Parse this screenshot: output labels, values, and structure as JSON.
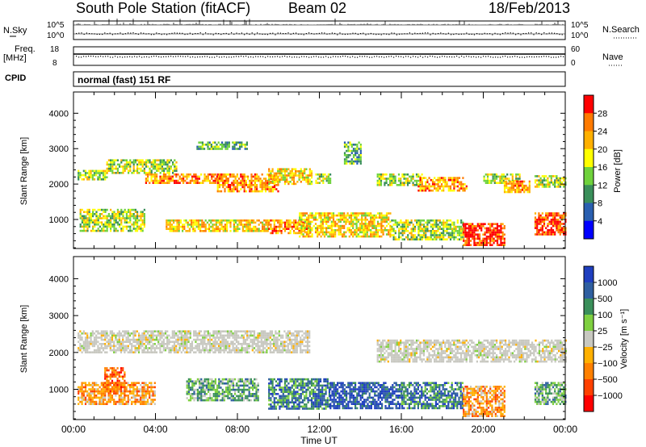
{
  "header": {
    "title": "South Pole Station (fitACF)",
    "beam": "Beam 02",
    "date": "18/Feb/2013"
  },
  "noise_panel": {
    "left_label": "N.Sky",
    "right_label": "N.Search",
    "left_ticks": [
      "10^5",
      "10^0"
    ],
    "right_ticks": [
      "10^5",
      "10^0"
    ]
  },
  "freq_panel": {
    "left_label_1": "Freq.",
    "left_label_2": "[MHz]",
    "right_label": "Nave",
    "left_ticks": [
      "18",
      "8"
    ],
    "right_ticks": [
      "60",
      "0"
    ]
  },
  "cpid": {
    "label": "CPID",
    "text": "normal (fast) 151 RF"
  },
  "axes": {
    "y_label": "Slant Range [km]",
    "x_label": "Time UT",
    "y_ticks": [
      "4000",
      "3000",
      "2000",
      "1000"
    ],
    "x_ticks": [
      "00:00",
      "04:00",
      "08:00",
      "12:00",
      "16:00",
      "20:00",
      "00:00"
    ]
  },
  "colors": {
    "axis": "#000000",
    "background": "#ffffff"
  },
  "chart_data": [
    {
      "type": "heatmap",
      "panel": "power",
      "xlabel": "Time UT",
      "ylabel": "Slant Range [km]",
      "xlim_hours": [
        0,
        24
      ],
      "ylim": [
        180,
        4600
      ],
      "colorbar": {
        "label": "Power [dB]",
        "ticks": [
          "28",
          "24",
          "20",
          "16",
          "12",
          "8",
          "4"
        ],
        "colors": [
          "#ff0000",
          "#ff7a00",
          "#ffb000",
          "#ffff00",
          "#6fd23c",
          "#3a8f5a",
          "#2a5fb0",
          "#0000ff"
        ]
      },
      "echo_bands": [
        {
          "t0": 0.2,
          "t1": 1.6,
          "r0": 2150,
          "r1": 2400,
          "level": 3
        },
        {
          "t0": 1.6,
          "t1": 5.0,
          "r0": 2300,
          "r1": 2700,
          "level": 3
        },
        {
          "t0": 3.5,
          "t1": 7.5,
          "r0": 2050,
          "r1": 2300,
          "level": 5
        },
        {
          "t0": 7.0,
          "t1": 10.0,
          "r0": 1800,
          "r1": 2300,
          "level": 5
        },
        {
          "t0": 9.5,
          "t1": 11.6,
          "r0": 2000,
          "r1": 2450,
          "level": 4
        },
        {
          "t0": 11.8,
          "t1": 12.5,
          "r0": 2050,
          "r1": 2300,
          "level": 3
        },
        {
          "t0": 14.8,
          "t1": 17.0,
          "r0": 2000,
          "r1": 2300,
          "level": 3
        },
        {
          "t0": 16.8,
          "t1": 19.2,
          "r0": 1800,
          "r1": 2200,
          "level": 5
        },
        {
          "t0": 20.0,
          "t1": 21.8,
          "r0": 2050,
          "r1": 2300,
          "level": 3
        },
        {
          "t0": 21.0,
          "t1": 22.3,
          "r0": 1800,
          "r1": 2100,
          "level": 5
        },
        {
          "t0": 22.5,
          "t1": 24.0,
          "r0": 1900,
          "r1": 2250,
          "level": 3
        },
        {
          "t0": 0.3,
          "t1": 3.5,
          "r0": 700,
          "r1": 1300,
          "level": 3
        },
        {
          "t0": 4.5,
          "t1": 9.5,
          "r0": 700,
          "r1": 1000,
          "level": 4
        },
        {
          "t0": 9.5,
          "t1": 11.5,
          "r0": 600,
          "r1": 1000,
          "level": 5
        },
        {
          "t0": 11.0,
          "t1": 15.5,
          "r0": 500,
          "r1": 1200,
          "level": 4
        },
        {
          "t0": 15.5,
          "t1": 19.0,
          "r0": 450,
          "r1": 1000,
          "level": 3
        },
        {
          "t0": 19.0,
          "t1": 21.0,
          "r0": 300,
          "r1": 900,
          "level": 6
        },
        {
          "t0": 22.5,
          "t1": 24.0,
          "r0": 600,
          "r1": 1200,
          "level": 6
        },
        {
          "t0": 6.0,
          "t1": 8.5,
          "r0": 3000,
          "r1": 3200,
          "level": 2
        },
        {
          "t0": 13.2,
          "t1": 14.0,
          "r0": 2600,
          "r1": 3200,
          "level": 2
        }
      ]
    },
    {
      "type": "heatmap",
      "panel": "velocity",
      "xlabel": "Time UT",
      "ylabel": "Slant Range [km]",
      "xlim_hours": [
        0,
        24
      ],
      "ylim": [
        180,
        4600
      ],
      "colorbar": {
        "label": "Velocity [m s⁻¹]",
        "ticks": [
          "1000",
          "500",
          "100",
          "25",
          "−25",
          "−100",
          "−500",
          "−1000"
        ],
        "colors": [
          "#1f3fbf",
          "#2f5fa0",
          "#3a8f5a",
          "#7fd040",
          "#c8c8c0",
          "#ffb000",
          "#ff8000",
          "#ff4000",
          "#ff0000"
        ]
      },
      "echo_bands": [
        {
          "t0": 0.2,
          "t1": 11.5,
          "r0": 2000,
          "r1": 2600,
          "level": 4
        },
        {
          "t0": 14.8,
          "t1": 24.0,
          "r0": 1750,
          "r1": 2350,
          "level": 4
        },
        {
          "t0": 0.2,
          "t1": 4.0,
          "r0": 600,
          "r1": 1200,
          "level": 6
        },
        {
          "t0": 1.5,
          "t1": 2.5,
          "r0": 900,
          "r1": 1600,
          "level": 7
        },
        {
          "t0": 5.5,
          "t1": 9.0,
          "r0": 700,
          "r1": 1300,
          "level": 3
        },
        {
          "t0": 9.5,
          "t1": 12.5,
          "r0": 500,
          "r1": 1300,
          "level": 2
        },
        {
          "t0": 12.5,
          "t1": 16.0,
          "r0": 500,
          "r1": 1200,
          "level": 1
        },
        {
          "t0": 16.0,
          "t1": 19.0,
          "r0": 500,
          "r1": 1200,
          "level": 2
        },
        {
          "t0": 19.0,
          "t1": 21.0,
          "r0": 300,
          "r1": 1100,
          "level": 6
        },
        {
          "t0": 22.5,
          "t1": 24.0,
          "r0": 600,
          "r1": 1200,
          "level": 3
        }
      ]
    }
  ]
}
